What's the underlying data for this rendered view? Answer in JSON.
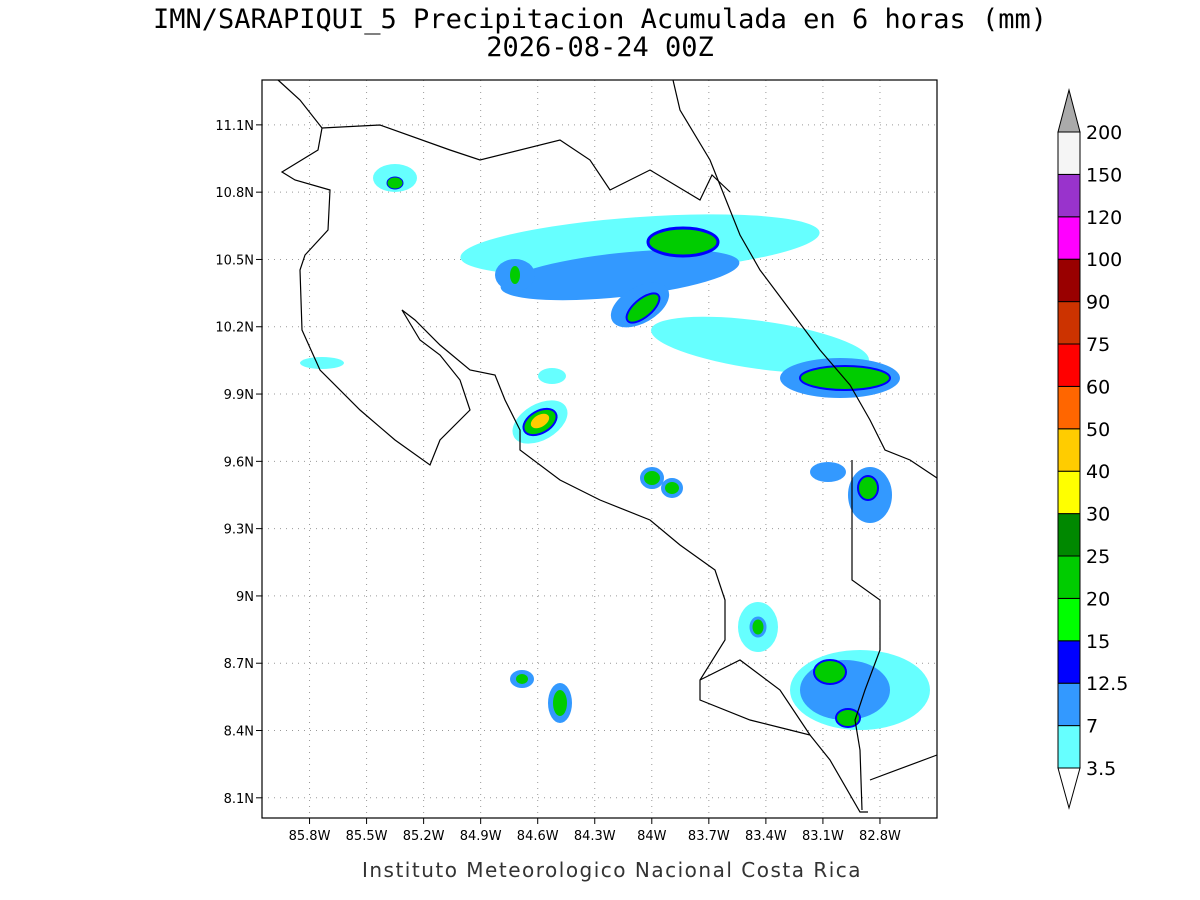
{
  "title": "IMN/SARAPIQUI_5 Precipitacion Acumulada en 6 horas (mm)",
  "subtitle": "2026-08-24 00Z",
  "map": {
    "lon_range": [
      -86.05,
      -82.5
    ],
    "lat_range": [
      8.01,
      11.3
    ],
    "lon_ticks": [
      {
        "value": -85.8,
        "label": "85.8W"
      },
      {
        "value": -85.5,
        "label": "85.5W"
      },
      {
        "value": -85.2,
        "label": "85.2W"
      },
      {
        "value": -84.9,
        "label": "84.9W"
      },
      {
        "value": -84.6,
        "label": "84.6W"
      },
      {
        "value": -84.3,
        "label": "84.3W"
      },
      {
        "value": -84,
        "label": "84W"
      },
      {
        "value": -83.7,
        "label": "83.7W"
      },
      {
        "value": -83.4,
        "label": "83.4W"
      },
      {
        "value": -83.1,
        "label": "83.1W"
      },
      {
        "value": -82.8,
        "label": "82.8W"
      }
    ],
    "lat_ticks": [
      {
        "value": 8.1,
        "label": "8.1N"
      },
      {
        "value": 8.4,
        "label": "8.4N"
      },
      {
        "value": 8.7,
        "label": "8.7N"
      },
      {
        "value": 9,
        "label": "9N"
      },
      {
        "value": 9.3,
        "label": "9.3N"
      },
      {
        "value": 9.6,
        "label": "9.6N"
      },
      {
        "value": 9.9,
        "label": "9.9N"
      },
      {
        "value": 10.2,
        "label": "10.2N"
      },
      {
        "value": 10.5,
        "label": "10.5N"
      },
      {
        "value": 10.8,
        "label": "10.8N"
      },
      {
        "value": 11.1,
        "label": "11.1N"
      }
    ],
    "grid": true
  },
  "colorbar": {
    "levels": [
      3.5,
      7,
      12.5,
      15,
      20,
      25,
      30,
      40,
      50,
      60,
      75,
      90,
      100,
      120,
      150,
      200
    ],
    "colors": [
      "#66ffff",
      "#3399ff",
      "#0000ff",
      "#00ff00",
      "#00cc00",
      "#008800",
      "#ffff00",
      "#ffcc00",
      "#ff6600",
      "#ff0000",
      "#cc3300",
      "#990000",
      "#ff00ff",
      "#9933cc",
      "#f5f5f5"
    ],
    "under_color": "#ffffff",
    "over_color": "#aaaaaa"
  },
  "footer": "Instituto Meteorologico Nacional Costa Rica"
}
